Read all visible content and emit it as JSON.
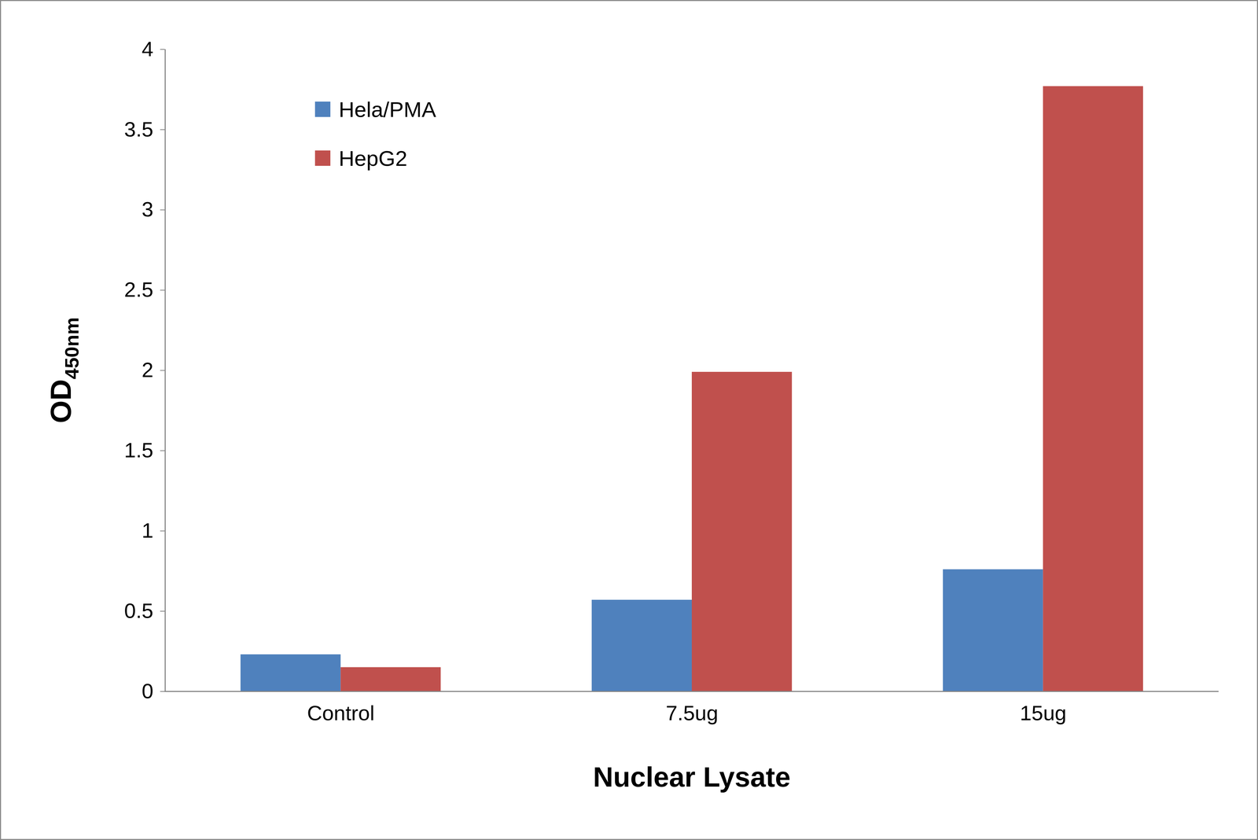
{
  "chart_data": {
    "type": "bar",
    "x_label": "Nuclear Lysate",
    "y_label": "OD450nm",
    "categories": [
      "Control",
      "7.5ug",
      "15ug"
    ],
    "series": [
      {
        "name": "Hela/PMA",
        "color": "#4f81bd",
        "values": [
          0.23,
          0.57,
          0.76
        ]
      },
      {
        "name": "HepG2",
        "color": "#c0504d",
        "values": [
          0.15,
          1.99,
          3.77
        ]
      }
    ],
    "ylim": [
      0,
      4
    ],
    "yticks": [
      0,
      0.5,
      1,
      1.5,
      2,
      2.5,
      3,
      3.5,
      4
    ],
    "grid": false,
    "legend": "upper left"
  }
}
